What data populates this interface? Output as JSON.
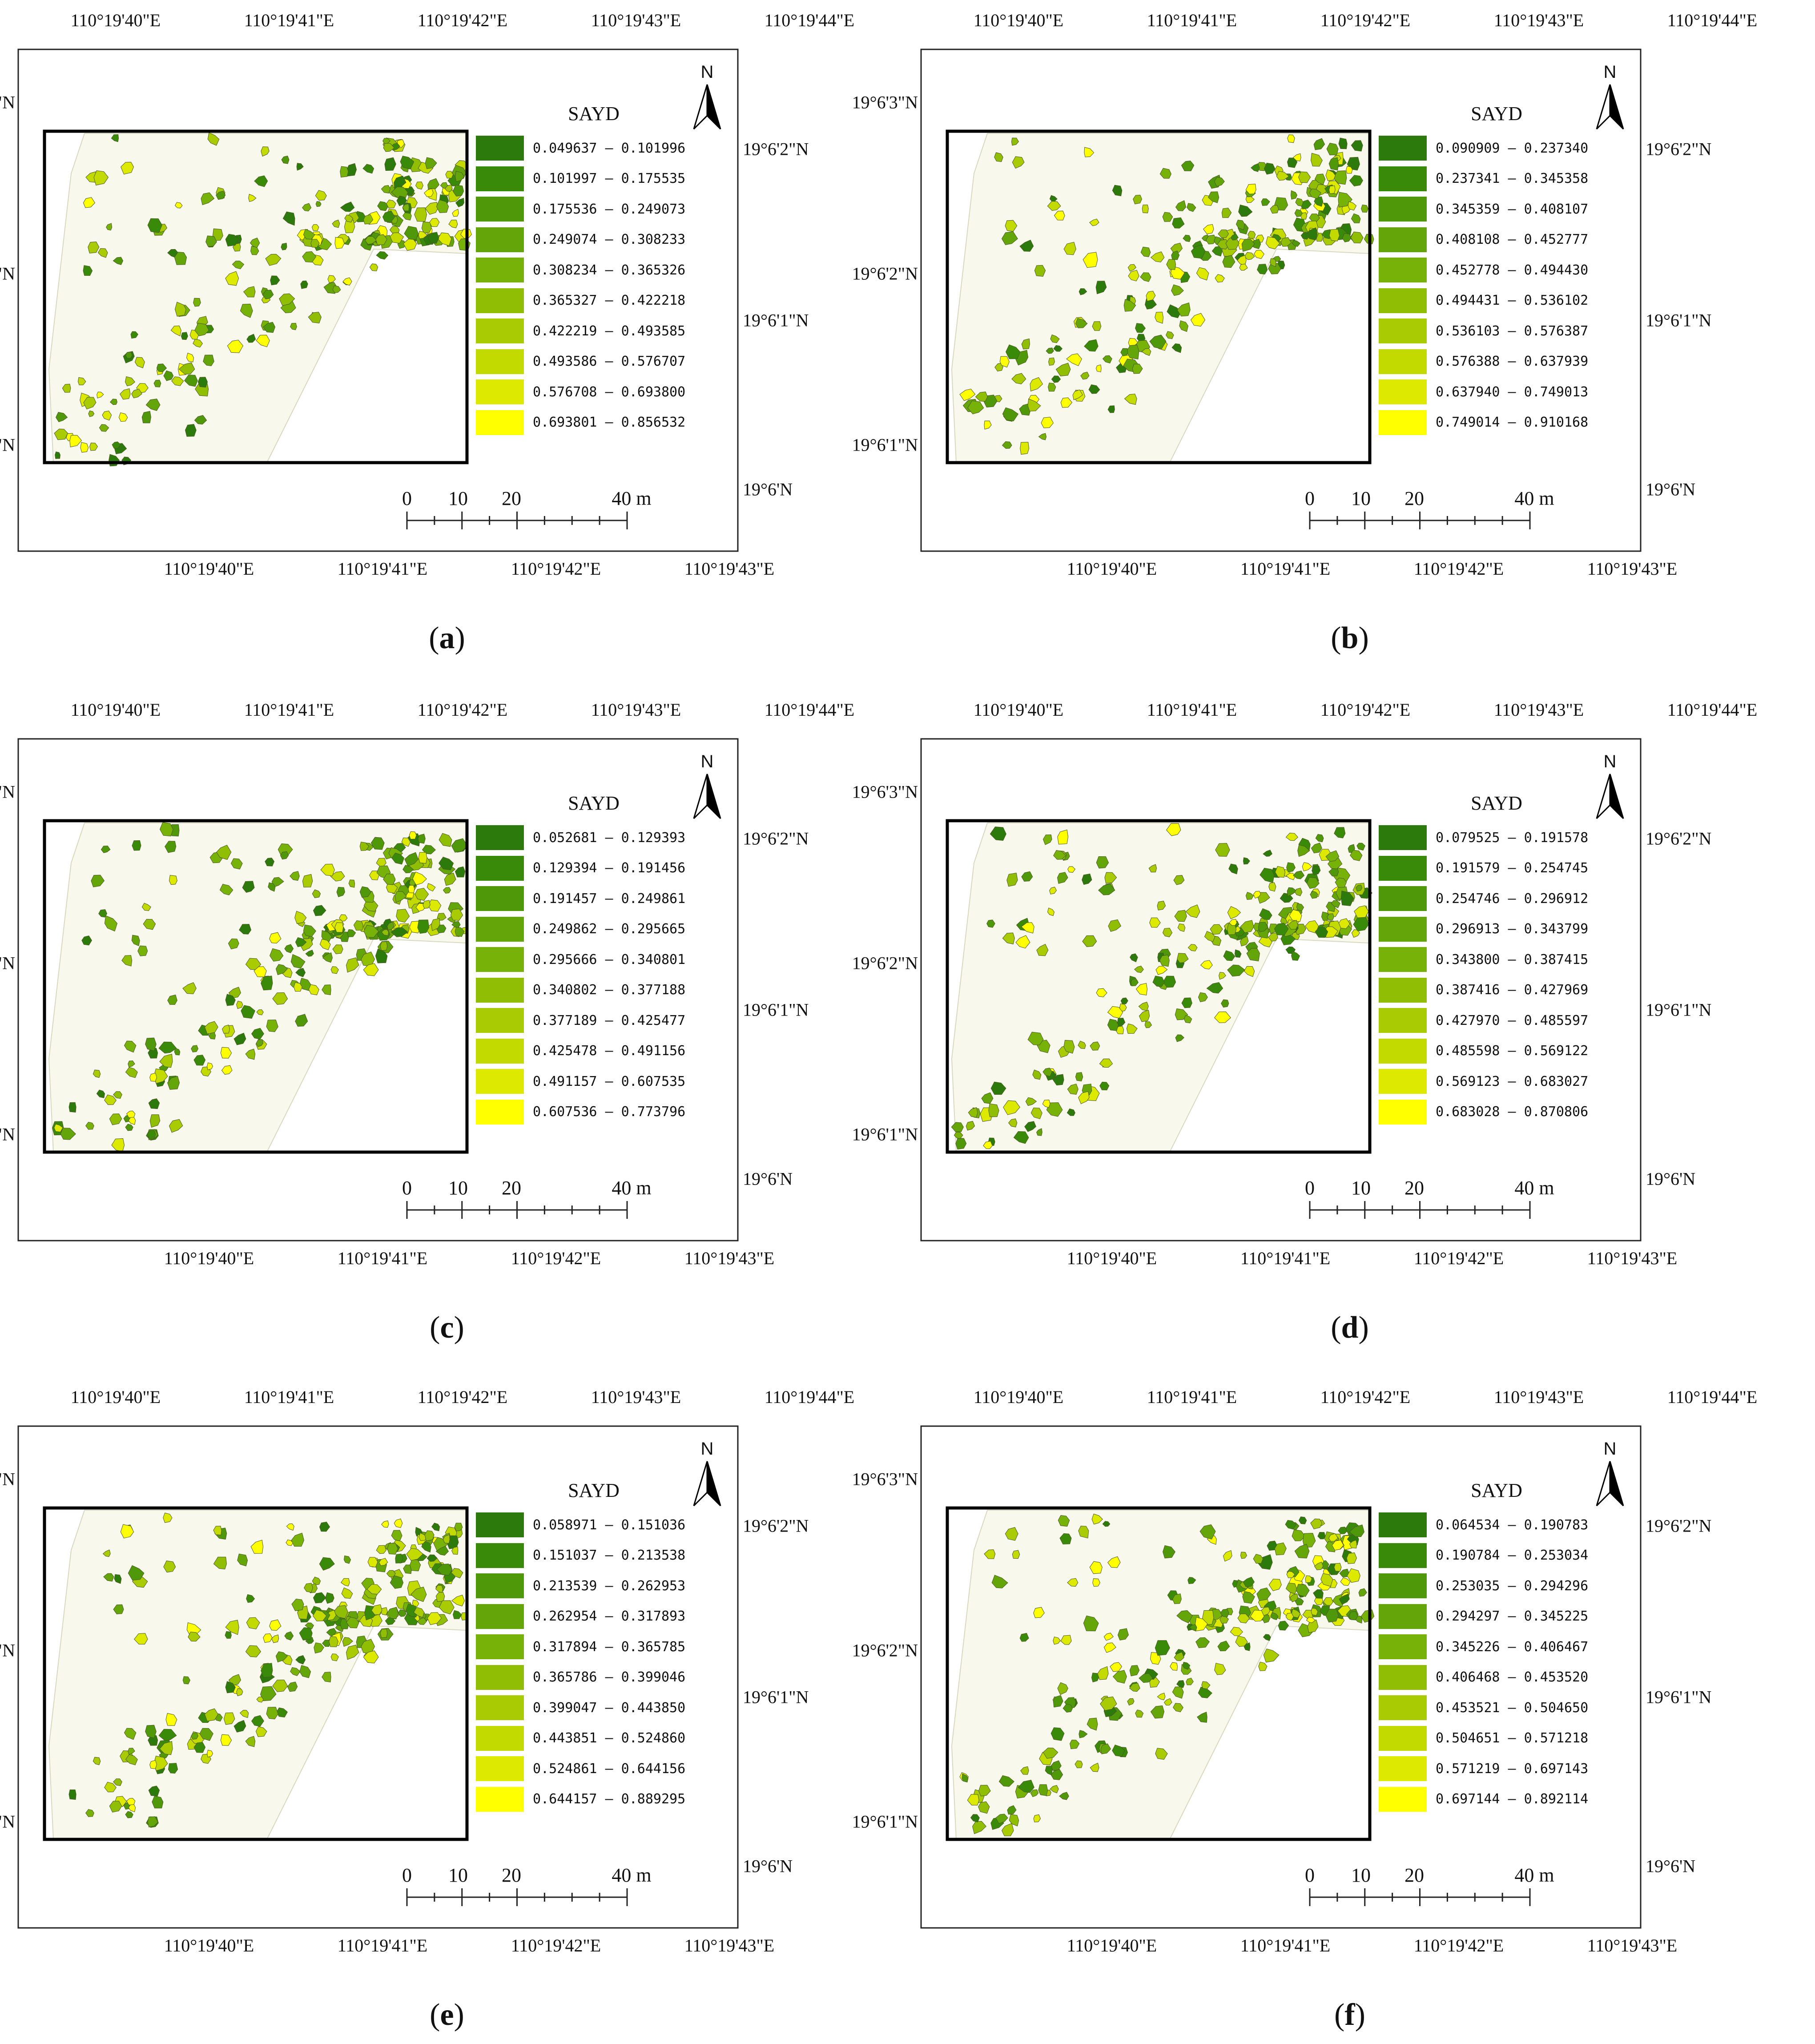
{
  "common": {
    "legend_title": "SAYD",
    "north_label": "N",
    "top_lon_labels": [
      "110°19'40\"E",
      "110°19'41\"E",
      "110°19'42\"E",
      "110°19'43\"E",
      "110°19'44\"E"
    ],
    "bottom_lon_labels": [
      "110°19'40\"E",
      "110°19'41\"E",
      "110°19'42\"E",
      "110°19'43\"E"
    ],
    "left_lat_labels": [
      "19°6'3\"N",
      "19°6'2\"N",
      "19°6'1\"N"
    ],
    "right_lat_labels": [
      "19°6'2\"N",
      "19°6'1\"N",
      "19°6'N"
    ],
    "scale_labels": [
      "0",
      "10",
      "20",
      "40 m"
    ],
    "colors": [
      "#2b7a0b",
      "#3a8a0a",
      "#4f980a",
      "#64a60a",
      "#77b208",
      "#8fbe05",
      "#a8cb03",
      "#c3da00",
      "#ddea00",
      "#ffff00"
    ],
    "study_area_fill": "#f8f8ec",
    "frame_color": "#000000"
  },
  "panels": [
    {
      "id": "a",
      "label": "a",
      "classes": [
        "0.049637 – 0.101996",
        "0.101997 – 0.175535",
        "0.175536 – 0.249073",
        "0.249074 – 0.308233",
        "0.308234 – 0.365326",
        "0.365327 – 0.422218",
        "0.422219 – 0.493585",
        "0.493586 – 0.576707",
        "0.576708 – 0.693800",
        "0.693801 – 0.856532"
      ]
    },
    {
      "id": "b",
      "label": "b",
      "classes": [
        "0.090909 – 0.237340",
        "0.237341 – 0.345358",
        "0.345359 – 0.408107",
        "0.408108 – 0.452777",
        "0.452778 – 0.494430",
        "0.494431 – 0.536102",
        "0.536103 – 0.576387",
        "0.576388 – 0.637939",
        "0.637940 – 0.749013",
        "0.749014 – 0.910168"
      ]
    },
    {
      "id": "c",
      "label": "c",
      "classes": [
        "0.052681 – 0.129393",
        "0.129394 – 0.191456",
        "0.191457 – 0.249861",
        "0.249862 – 0.295665",
        "0.295666 – 0.340801",
        "0.340802 – 0.377188",
        "0.377189 – 0.425477",
        "0.425478 – 0.491156",
        "0.491157 – 0.607535",
        "0.607536 – 0.773796"
      ]
    },
    {
      "id": "d",
      "label": "d",
      "classes": [
        "0.079525 – 0.191578",
        "0.191579 – 0.254745",
        "0.254746 – 0.296912",
        "0.296913 – 0.343799",
        "0.343800 – 0.387415",
        "0.387416 – 0.427969",
        "0.427970 – 0.485597",
        "0.485598 – 0.569122",
        "0.569123 – 0.683027",
        "0.683028 – 0.870806"
      ]
    },
    {
      "id": "e",
      "label": "e",
      "classes": [
        "0.058971 – 0.151036",
        "0.151037 – 0.213538",
        "0.213539 – 0.262953",
        "0.262954 – 0.317893",
        "0.317894 – 0.365785",
        "0.365786 – 0.399046",
        "0.399047 – 0.443850",
        "0.443851 – 0.524860",
        "0.524861 – 0.644156",
        "0.644157 – 0.889295"
      ]
    },
    {
      "id": "f",
      "label": "f",
      "classes": [
        "0.064534 – 0.190783",
        "0.190784 – 0.253034",
        "0.253035 – 0.294296",
        "0.294297 – 0.345225",
        "0.345226 – 0.406467",
        "0.406468 – 0.453520",
        "0.453521 – 0.504650",
        "0.504651 – 0.571218",
        "0.571219 – 0.697143",
        "0.697144 – 0.892114"
      ]
    }
  ]
}
